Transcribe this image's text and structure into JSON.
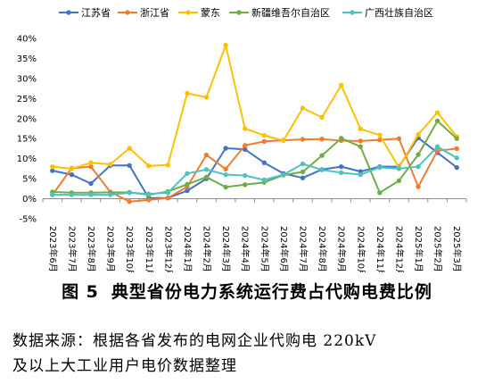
{
  "chart_data": {
    "type": "line",
    "categories": [
      "2023年6月",
      "2023年7月",
      "2023年8月",
      "2023年9月",
      "2023年10月",
      "2023年11月",
      "2023年12月",
      "2024年1月",
      "2024年2月",
      "2024年3月",
      "2024年4月",
      "2024年5月",
      "2024年6月",
      "2024年7月",
      "2024年8月",
      "2024年9月",
      "2024年10月",
      "2024年11月",
      "2024年12月",
      "2025年1月",
      "2025年2月",
      "2025年3月"
    ],
    "ylim": [
      -5,
      40
    ],
    "yticks": [
      -5,
      0,
      5,
      10,
      15,
      20,
      25,
      30,
      35,
      40
    ],
    "ytick_labels": [
      "-5%",
      "0%",
      "5%",
      "10%",
      "15%",
      "20%",
      "25%",
      "30%",
      "35%",
      "40%"
    ],
    "grid": false,
    "legend_position": "top",
    "series": [
      {
        "name": "江苏省",
        "color": "#4472C4",
        "marker": "circle",
        "values": [
          7.0,
          6.0,
          3.8,
          8.3,
          8.3,
          0.2,
          0.2,
          2.0,
          5.0,
          12.6,
          12.3,
          9.0,
          6.3,
          5.2,
          7.3,
          8.0,
          6.8,
          8.0,
          8.0,
          15.2,
          11.5,
          7.8
        ]
      },
      {
        "name": "浙江省",
        "color": "#ED7D31",
        "marker": "circle",
        "values": [
          1.0,
          7.6,
          8.0,
          1.7,
          -0.7,
          -0.3,
          0.2,
          3.0,
          10.9,
          7.4,
          13.3,
          14.3,
          14.6,
          14.8,
          14.9,
          14.5,
          14.4,
          14.7,
          15.0,
          3.0,
          12.0,
          12.5
        ]
      },
      {
        "name": "蒙东",
        "color": "#FFC000",
        "marker": "circle",
        "values": [
          8.0,
          7.5,
          9.0,
          8.6,
          12.6,
          8.2,
          8.4,
          26.3,
          25.3,
          38.3,
          17.5,
          15.8,
          14.5,
          22.6,
          20.3,
          28.3,
          17.4,
          15.9,
          7.8,
          16.0,
          21.5,
          15.5
        ]
      },
      {
        "name": "新疆维吾尔自治区",
        "color": "#70AD47",
        "marker": "circle",
        "values": [
          1.7,
          1.5,
          1.5,
          1.6,
          1.6,
          1.0,
          1.8,
          3.6,
          5.4,
          2.9,
          3.5,
          4.1,
          5.9,
          6.7,
          10.8,
          15.1,
          13.0,
          1.5,
          4.5,
          11.0,
          19.4,
          15.0
        ]
      },
      {
        "name": "广西壮族自治区",
        "color": "#4DC3C0",
        "marker": "circle",
        "values": [
          1.0,
          1.0,
          1.0,
          1.0,
          1.5,
          1.2,
          1.5,
          6.3,
          7.3,
          6.0,
          5.8,
          4.7,
          6.0,
          8.7,
          7.2,
          6.5,
          6.0,
          7.8,
          7.5,
          8.0,
          13.0,
          10.2
        ]
      }
    ]
  },
  "figure": {
    "number": "图 5",
    "title": "典型省份电力系统运行费占代购电费比例",
    "source_line1": "数据来源：根据各省发布的电网企业代购电 220kV",
    "source_line2": "及以上大工业用户电价数据整理"
  }
}
